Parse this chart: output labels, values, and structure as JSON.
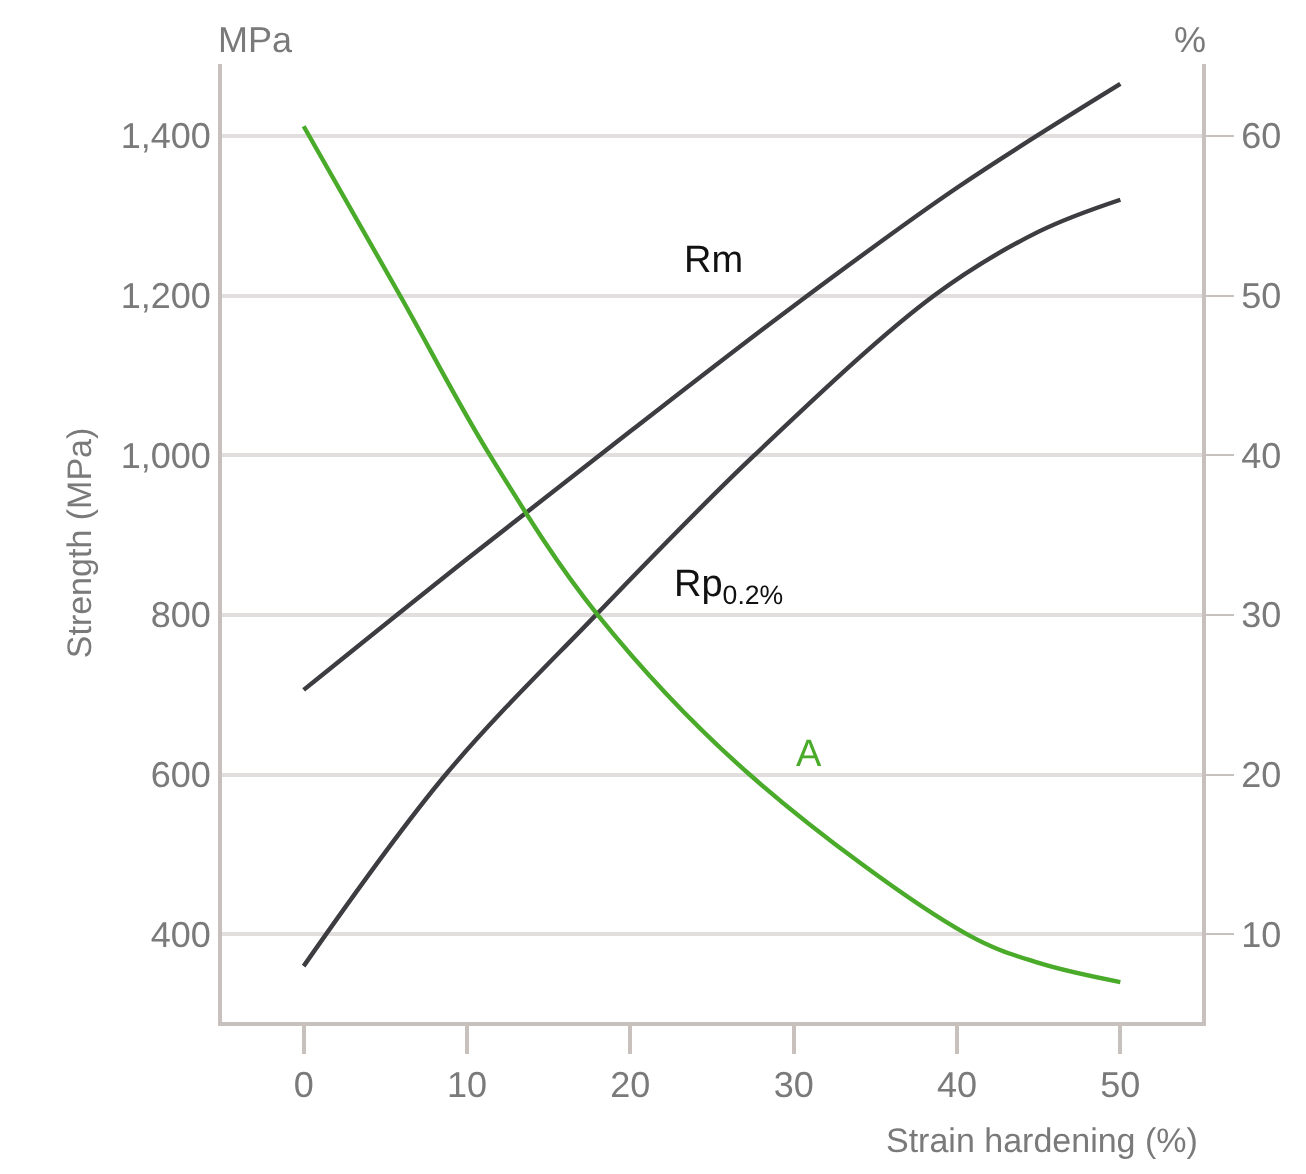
{
  "chart_data": {
    "type": "line",
    "xlabel": "Strain hardening (%)",
    "ylabel": "Strength (MPa)",
    "y2label": "%",
    "annotations": [
      "MPa"
    ],
    "series": [
      {
        "name": "Rm",
        "color": "#3c3c41",
        "x": [
          0,
          10,
          20,
          30,
          40,
          50
        ],
        "values": [
          706,
          870,
          1030,
          1187,
          1335,
          1465
        ]
      },
      {
        "name": "Rp$_{0.2%}$",
        "color": "#3c3c41",
        "x": [
          0,
          8.7,
          17.9,
          27.6,
          38.6,
          45,
          50
        ],
        "values": [
          360,
          600,
          800,
          1000,
          1200,
          1280,
          1320
        ]
      },
      {
        "name": "A",
        "color": "#4aaa2a",
        "axis": "y2",
        "x": [
          0,
          5.9,
          11.4,
          18,
          27.3,
          40.6,
          45,
          50
        ],
        "values": [
          60.6,
          50,
          40,
          30,
          20,
          10,
          8.2,
          7.0
        ]
      }
    ],
    "xlim": [
      -5,
      55
    ],
    "xticks": [
      0,
      10,
      20,
      30,
      40,
      50
    ],
    "ylim": [
      290,
      1490
    ],
    "yticks": [
      {
        "value": 400,
        "label": "400"
      },
      {
        "value": 600,
        "label": "600"
      },
      {
        "value": 800,
        "label": "800"
      },
      {
        "value": 1000,
        "label": "1,000"
      },
      {
        "value": 1200,
        "label": "1,200"
      },
      {
        "value": 1400,
        "label": "1,400"
      }
    ],
    "y2lim": [
      4.5,
      64.5
    ],
    "y2ticks": [
      10,
      20,
      30,
      40,
      50,
      60
    ],
    "grid": "y",
    "legend": false,
    "marker": "none",
    "line_style": "solid"
  }
}
